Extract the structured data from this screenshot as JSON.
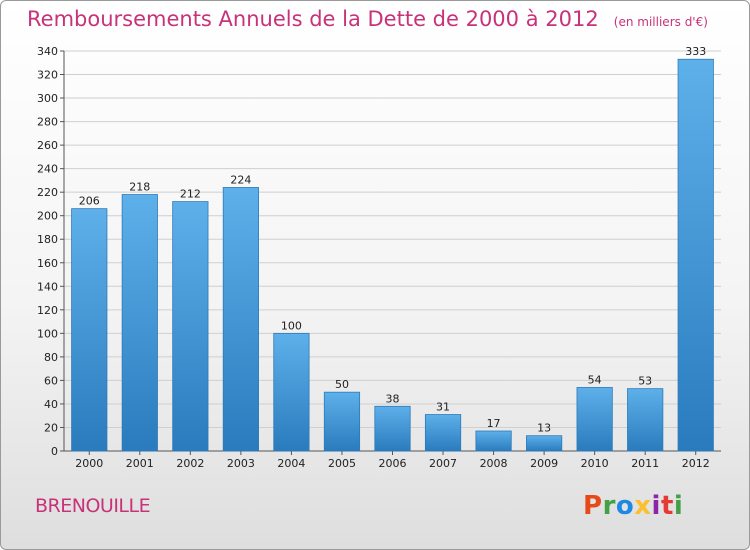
{
  "title": "Remboursements Annuels de la Dette de 2000 à 2012",
  "unit_label": "(en milliers d'€)",
  "commune": "BRENOUILLE",
  "logo": {
    "text": "Proxiti",
    "colors": [
      "#e64a19",
      "#43a047",
      "#1e88e5",
      "#fbc02d",
      "#8e24aa",
      "#e53935",
      "#43a047"
    ]
  },
  "colors": {
    "bar_top": "#5eb0ea",
    "bar_bottom": "#2a7bbd",
    "accent": "#c8327a",
    "grid": "#cfcfcf"
  },
  "chart_data": {
    "type": "bar",
    "title": "Remboursements Annuels de la Dette de 2000 à 2012",
    "categories": [
      "2000",
      "2001",
      "2002",
      "2003",
      "2004",
      "2005",
      "2006",
      "2007",
      "2008",
      "2009",
      "2010",
      "2011",
      "2012"
    ],
    "values": [
      206,
      218,
      212,
      224,
      100,
      50,
      38,
      31,
      17,
      13,
      54,
      53,
      333
    ],
    "ylim": [
      0,
      340
    ],
    "yticks": [
      0,
      20,
      40,
      60,
      80,
      100,
      120,
      140,
      160,
      180,
      200,
      220,
      240,
      260,
      280,
      300,
      320,
      340
    ],
    "grid": true,
    "xlabel": "",
    "ylabel": ""
  }
}
